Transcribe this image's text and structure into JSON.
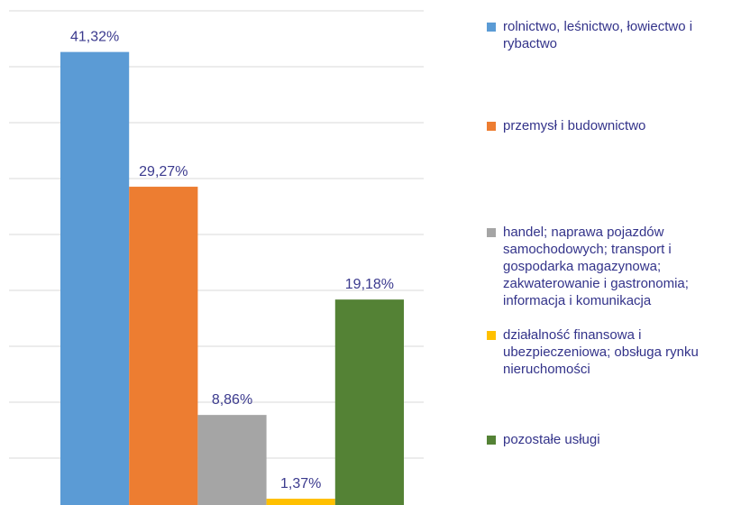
{
  "chart_data": {
    "type": "bar",
    "categories": [
      "rolnictwo, leśnictwo, łowiectwo i rybactwo",
      "przemysł i budownictwo",
      "handel; naprawa pojazdów samochodowych; transport i gospodarka magazynowa; zakwaterowanie i gastronomia; informacja i komunikacja",
      "działalność finansowa i ubezpieczeniowa; obsługa rynku nieruchomości",
      "pozostałe usługi"
    ],
    "values": [
      41.32,
      29.27,
      8.86,
      1.37,
      19.18
    ],
    "value_labels": [
      "41,32%",
      "29,27%",
      "8,86%",
      "1,37%",
      "19,18%"
    ],
    "colors": [
      "#5b9bd5",
      "#ed7d31",
      "#a5a5a5",
      "#ffc000",
      "#548235"
    ],
    "ylim": [
      0,
      45
    ],
    "yticks": [
      0,
      5,
      10,
      15,
      20,
      25,
      30,
      35,
      40,
      45
    ],
    "grid": true,
    "legend": "right"
  }
}
